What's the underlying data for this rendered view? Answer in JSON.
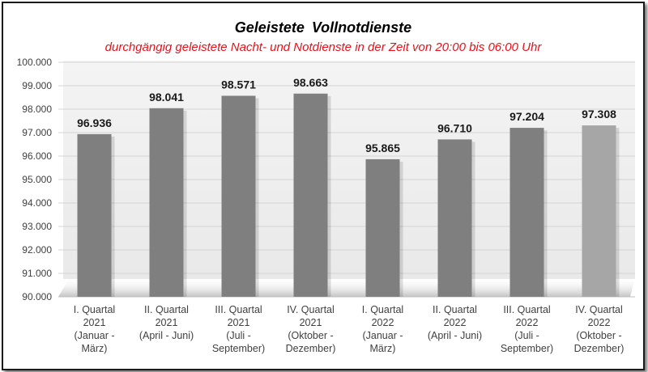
{
  "chart_data": {
    "type": "bar",
    "title": "Geleistete Vollnotdienste",
    "subtitle": "durchgängig geleistete Nacht- und Notdienste in der Zeit von 20:00 bis 06:00 Uhr",
    "xlabel": "",
    "ylabel": "",
    "ylim": [
      90000,
      100000
    ],
    "yticks": [
      90000,
      91000,
      92000,
      93000,
      94000,
      95000,
      96000,
      97000,
      98000,
      99000,
      100000
    ],
    "ytick_labels": [
      "90.000",
      "91.000",
      "92.000",
      "93.000",
      "94.000",
      "95.000",
      "96.000",
      "97.000",
      "98.000",
      "99.000",
      "100.000"
    ],
    "grid": true,
    "categories": [
      [
        "I. Quartal",
        "2021",
        "(Januar -",
        "März)"
      ],
      [
        "II. Quartal",
        "2021",
        "(April - Juni)"
      ],
      [
        "III. Quartal",
        "2021",
        "(Juli -",
        "September)"
      ],
      [
        "IV. Quartal",
        "2021",
        "(Oktober -",
        "Dezember)"
      ],
      [
        "I. Quartal",
        "2022",
        "(Januar -",
        "März)"
      ],
      [
        "II. Quartal",
        "2022",
        "(April - Juni)"
      ],
      [
        "III. Quartal",
        "2022",
        "(Juli -",
        "September)"
      ],
      [
        "IV. Quartal",
        "2022",
        "(Oktober -",
        "Dezember)"
      ]
    ],
    "values": [
      96936,
      98041,
      98571,
      98663,
      95865,
      96710,
      97204,
      97308
    ],
    "value_labels": [
      "96.936",
      "98.041",
      "98.571",
      "98.663",
      "95.865",
      "96.710",
      "97.204",
      "97.308"
    ],
    "bar_color": "#7f7f7f",
    "highlight_color": "#a6a6a6",
    "highlight_index": 7
  }
}
